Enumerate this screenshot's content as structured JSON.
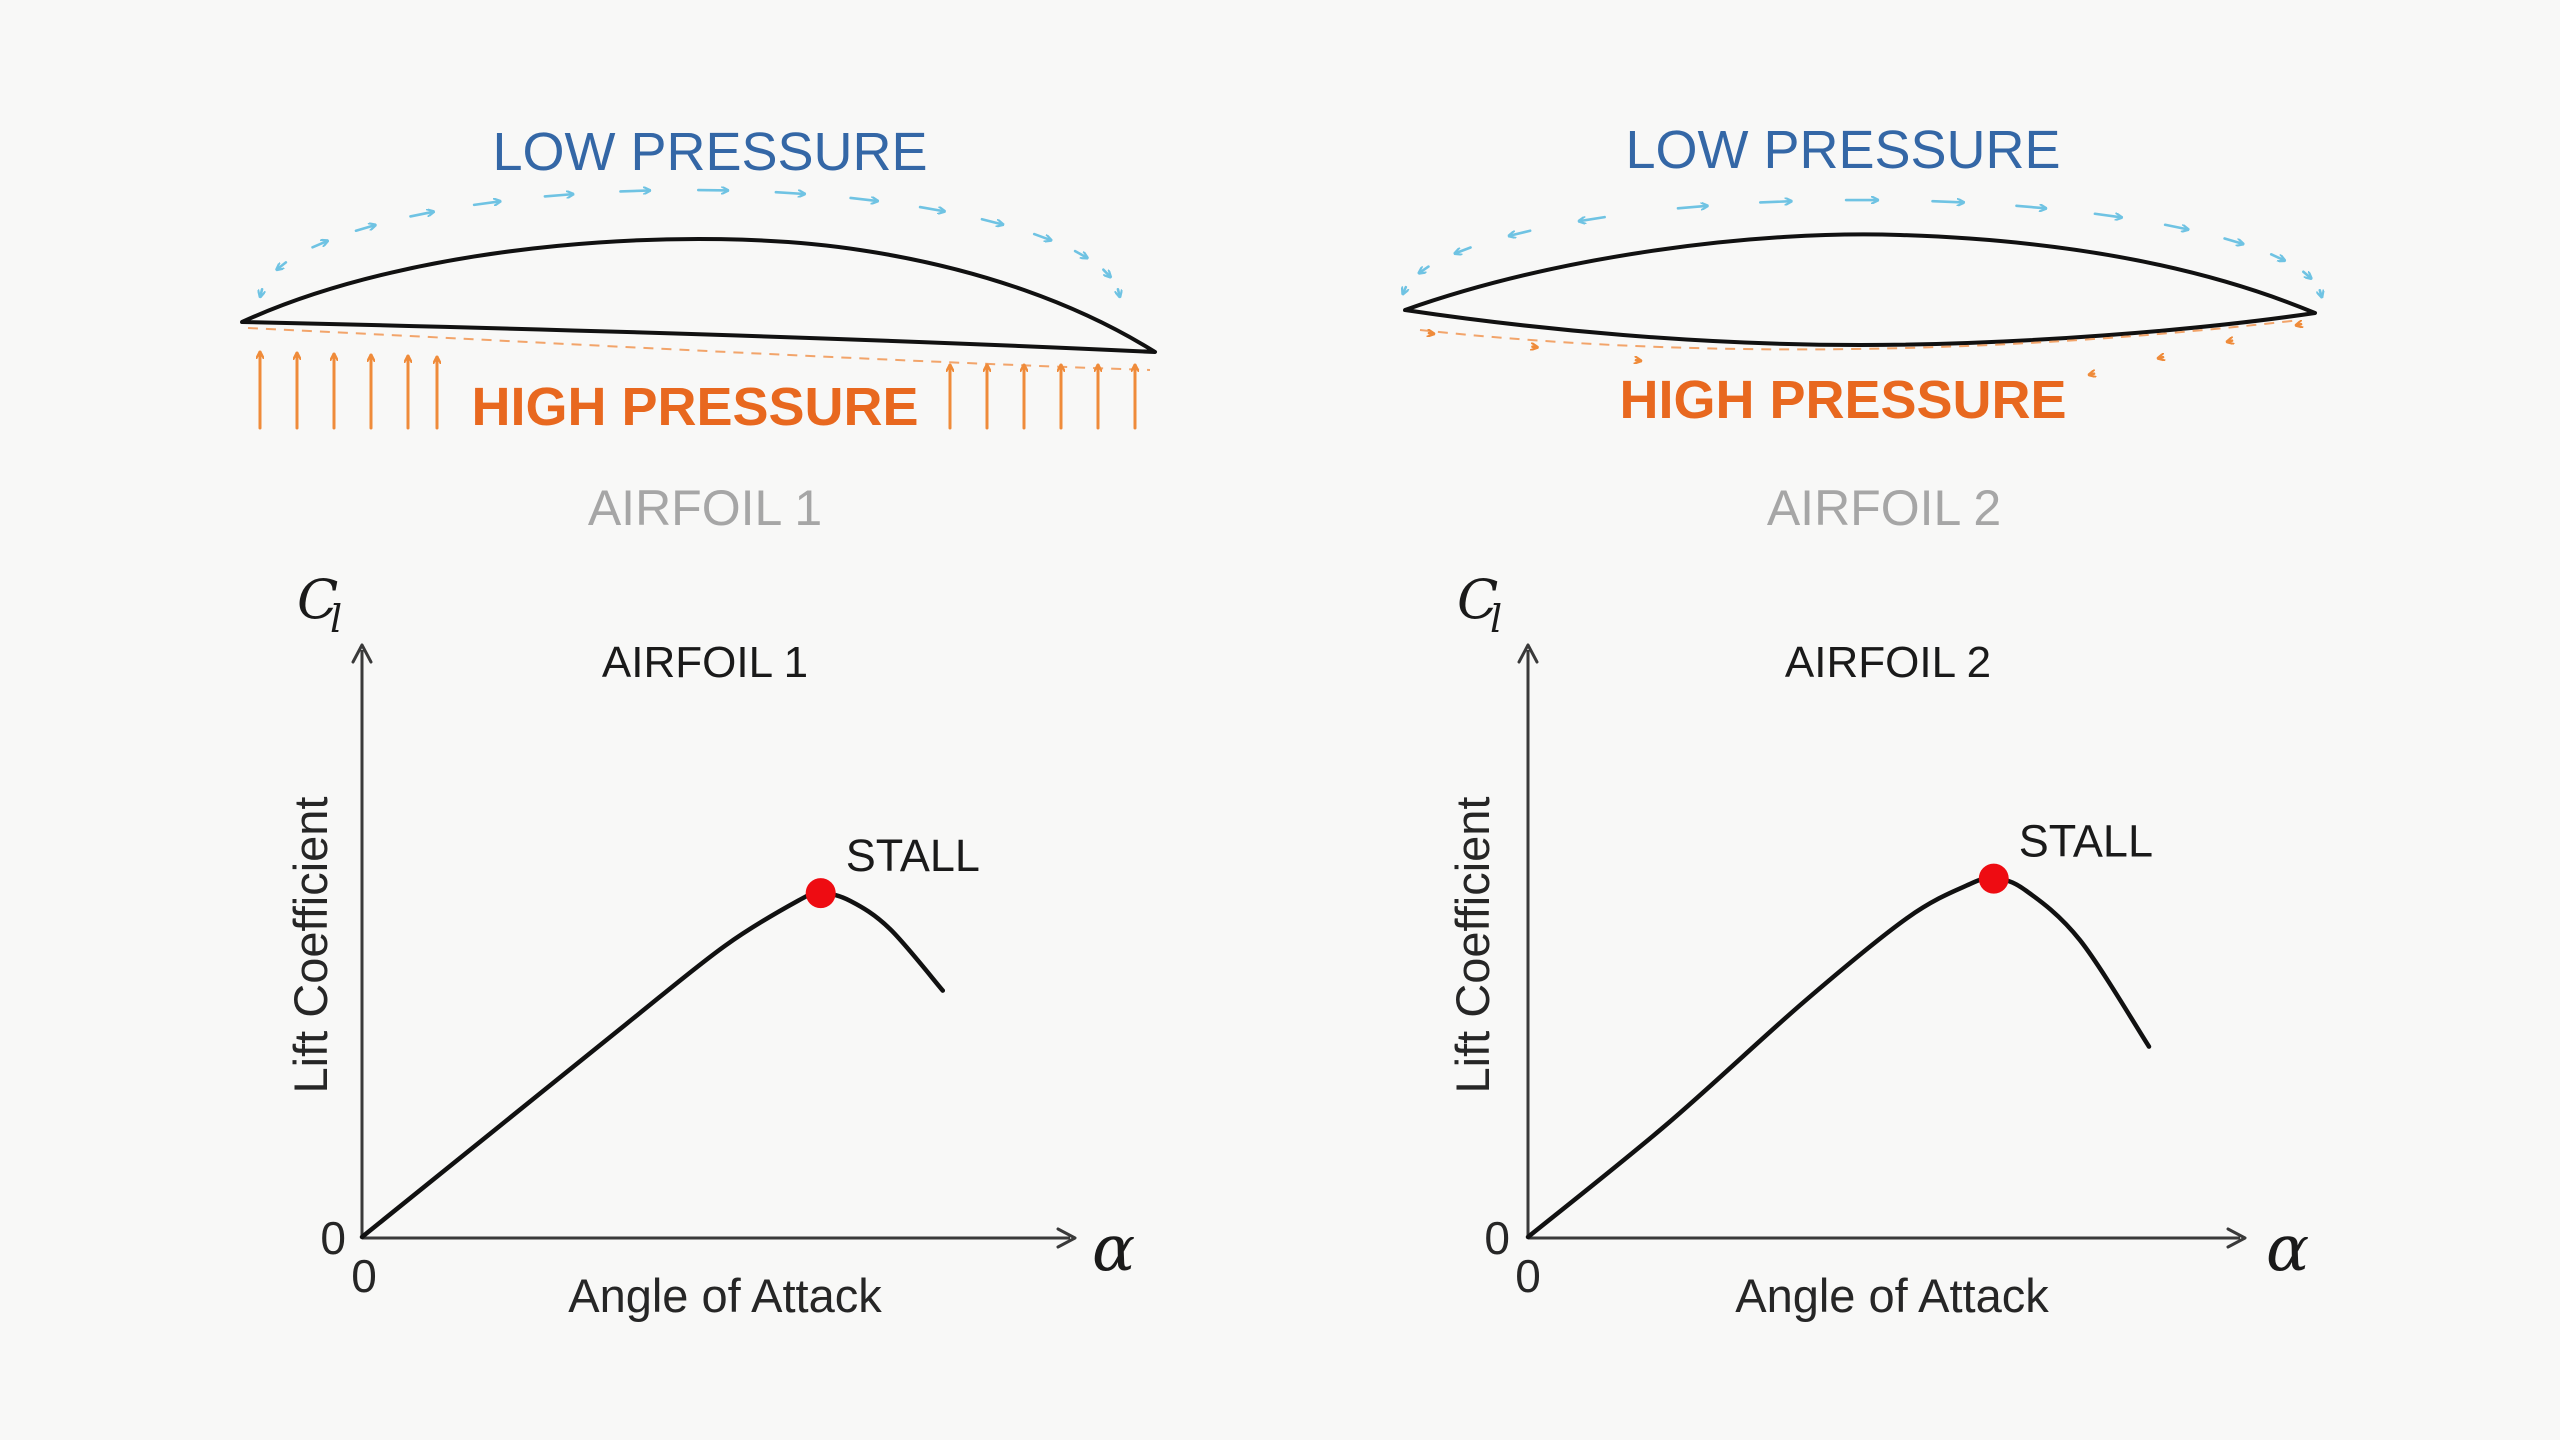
{
  "airfoils": [
    {
      "low_label": "LOW PRESSURE",
      "high_label": "HIGH PRESSURE",
      "caption": "AIRFOIL 1",
      "chart_data": {
        "type": "line",
        "title": "AIRFOIL 1",
        "xlabel": "Angle of Attack",
        "ylabel": "Lift Coefficient",
        "x_symbol": "α",
        "y_symbol": "C",
        "y_symbol_sub": "l",
        "x_origin_label": "0",
        "y_origin_label": "0",
        "xlim": [
          0,
          1
        ],
        "ylim": [
          0,
          1
        ],
        "series": [
          {
            "values": [
              [
                0,
                0
              ],
              [
                0.2,
                0.19
              ],
              [
                0.4,
                0.38
              ],
              [
                0.55,
                0.52
              ],
              [
                0.66,
                0.6
              ],
              [
                0.695,
                0.614
              ],
              [
                0.74,
                0.6
              ],
              [
                0.8,
                0.55
              ],
              [
                0.88,
                0.44
              ]
            ]
          }
        ],
        "annotations": [
          {
            "text": "STALL",
            "x": 0.695,
            "y": 0.614,
            "marker_color": "#ee0c12"
          }
        ]
      }
    },
    {
      "low_label": "LOW PRESSURE",
      "high_label": "HIGH PRESSURE",
      "caption": "AIRFOIL 2",
      "chart_data": {
        "type": "line",
        "title": "AIRFOIL 2",
        "xlabel": "Angle of Attack",
        "ylabel": "Lift Coefficient",
        "x_symbol": "α",
        "y_symbol": "C",
        "y_symbol_sub": "l",
        "x_origin_label": "0",
        "y_origin_label": "0",
        "xlim": [
          0,
          1
        ],
        "ylim": [
          0,
          1
        ],
        "series": [
          {
            "values": [
              [
                0,
                0
              ],
              [
                0.2,
                0.2
              ],
              [
                0.4,
                0.42
              ],
              [
                0.55,
                0.57
              ],
              [
                0.64,
                0.63
              ],
              [
                0.675,
                0.64
              ],
              [
                0.72,
                0.62
              ],
              [
                0.8,
                0.53
              ],
              [
                0.9,
                0.34
              ]
            ]
          }
        ],
        "annotations": [
          {
            "text": "STALL",
            "x": 0.675,
            "y": 0.64,
            "marker_color": "#ee0c12"
          }
        ]
      }
    }
  ],
  "colors": {
    "low_pressure": "#3467a6",
    "low_flow_arrows": "#6fc3e3",
    "high_pressure": "#e8681f",
    "high_flow_arrows": "#ef8b3a",
    "caption": "#a6a6a6",
    "stall_marker": "#ee0c12"
  }
}
